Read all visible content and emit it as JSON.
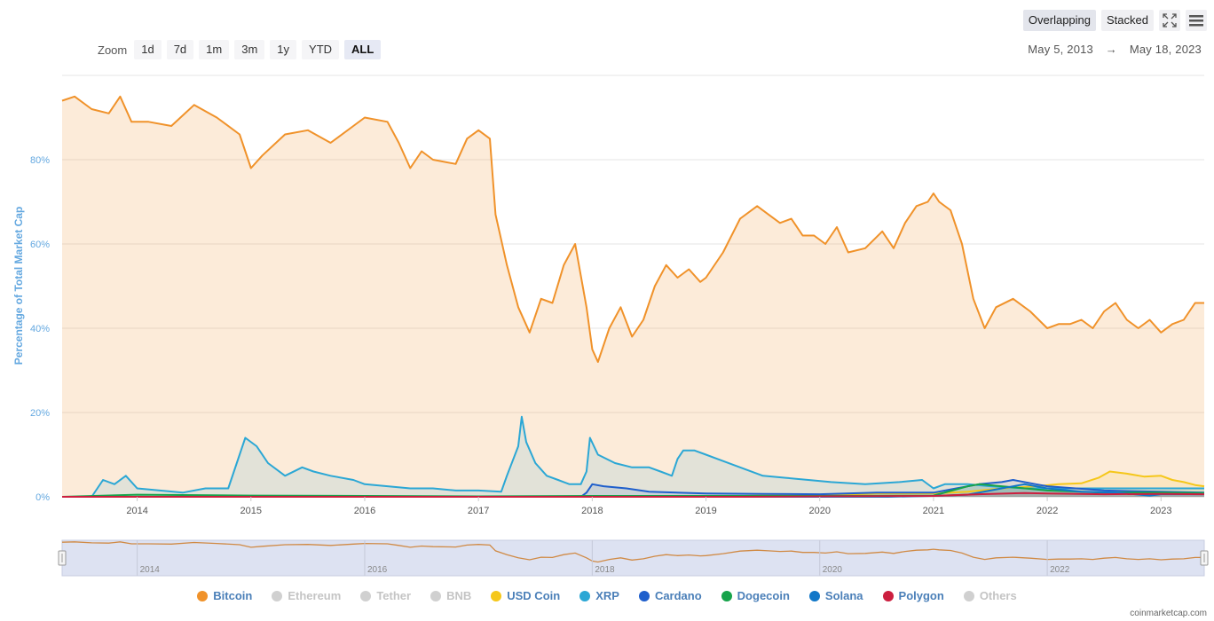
{
  "toolbar": {
    "overlapping_label": "Overlapping",
    "stacked_label": "Stacked",
    "fullscreen_icon": "expand-icon",
    "menu_icon": "hamburger-icon"
  },
  "zoom": {
    "label": "Zoom",
    "options": [
      "1d",
      "7d",
      "1m",
      "3m",
      "1y",
      "YTD",
      "ALL"
    ],
    "active": "ALL"
  },
  "range": {
    "start": "May 5, 2013",
    "arrow": "→",
    "end": "May 18, 2023"
  },
  "credit": "coinmarketcap.com",
  "chart_data": {
    "type": "area",
    "title": "",
    "ylabel": "Percentage of Total Market Cap",
    "xlabel": "",
    "xlim": [
      2013.34,
      2023.38
    ],
    "ylim": [
      0,
      100
    ],
    "yticks": [
      0,
      20,
      40,
      60,
      80
    ],
    "ytick_labels": [
      "0%",
      "20%",
      "40%",
      "60%",
      "80%"
    ],
    "xticks": [
      2014,
      2015,
      2016,
      2017,
      2018,
      2019,
      2020,
      2021,
      2022,
      2023
    ],
    "xtick_labels": [
      "2014",
      "2015",
      "2016",
      "2017",
      "2018",
      "2019",
      "2020",
      "2021",
      "2022",
      "2023"
    ],
    "navigator_ticks": [
      "2014",
      "2016",
      "2018",
      "2020",
      "2022"
    ],
    "series": [
      {
        "name": "Bitcoin",
        "color": "#f0922a",
        "visible": true,
        "x": [
          2013.34,
          2013.45,
          2013.6,
          2013.75,
          2013.85,
          2013.95,
          2014.1,
          2014.3,
          2014.5,
          2014.7,
          2014.9,
          2015.0,
          2015.1,
          2015.3,
          2015.5,
          2015.7,
          2015.9,
          2016.0,
          2016.2,
          2016.3,
          2016.4,
          2016.5,
          2016.6,
          2016.8,
          2016.9,
          2017.0,
          2017.1,
          2017.15,
          2017.25,
          2017.35,
          2017.45,
          2017.55,
          2017.65,
          2017.75,
          2017.85,
          2017.95,
          2018.0,
          2018.05,
          2018.15,
          2018.25,
          2018.35,
          2018.45,
          2018.55,
          2018.65,
          2018.75,
          2018.85,
          2018.95,
          2019.0,
          2019.15,
          2019.3,
          2019.45,
          2019.55,
          2019.65,
          2019.75,
          2019.85,
          2019.95,
          2020.05,
          2020.15,
          2020.25,
          2020.4,
          2020.55,
          2020.65,
          2020.75,
          2020.85,
          2020.95,
          2021.0,
          2021.05,
          2021.15,
          2021.25,
          2021.35,
          2021.45,
          2021.55,
          2021.7,
          2021.85,
          2022.0,
          2022.1,
          2022.2,
          2022.3,
          2022.4,
          2022.5,
          2022.6,
          2022.7,
          2022.8,
          2022.9,
          2023.0,
          2023.1,
          2023.2,
          2023.3,
          2023.38
        ],
        "values": [
          94,
          95,
          92,
          91,
          95,
          89,
          89,
          88,
          93,
          90,
          86,
          78,
          81,
          86,
          87,
          84,
          88,
          90,
          89,
          84,
          78,
          82,
          80,
          79,
          85,
          87,
          85,
          67,
          55,
          45,
          39,
          47,
          46,
          55,
          60,
          45,
          35,
          32,
          40,
          45,
          38,
          42,
          50,
          55,
          52,
          54,
          51,
          52,
          58,
          66,
          69,
          67,
          65,
          66,
          62,
          62,
          60,
          64,
          58,
          59,
          63,
          59,
          65,
          69,
          70,
          72,
          70,
          68,
          60,
          47,
          40,
          45,
          47,
          44,
          40,
          41,
          41,
          42,
          40,
          44,
          46,
          42,
          40,
          42,
          39,
          41,
          42,
          46,
          46
        ]
      },
      {
        "name": "Ethereum",
        "color": "#c9c9c9",
        "visible": false,
        "x": [
          2013.34,
          2013.5,
          2013.7,
          2013.9,
          2014.1,
          2014.3,
          2014.5,
          2014.7,
          2014.9,
          2015.1,
          2015.3,
          2015.5,
          2015.7,
          2015.9,
          2016.1,
          2016.3,
          2016.5,
          2016.7,
          2016.9,
          2017.0,
          2017.1,
          2017.2,
          2017.3,
          2017.4,
          2017.5,
          2017.6,
          2017.7,
          2017.8,
          2017.9,
          2018.0,
          2018.1,
          2018.2,
          2018.3,
          2018.4,
          2018.5,
          2018.6,
          2018.7,
          2018.8,
          2018.9,
          2019.0,
          2019.2,
          2019.4,
          2019.6,
          2019.8,
          2020.0,
          2020.2,
          2020.4,
          2020.6,
          2020.8,
          2021.0,
          2021.1,
          2021.2,
          2021.3,
          2021.4,
          2021.5,
          2021.6,
          2021.7,
          2021.8,
          2021.9,
          2022.0,
          2022.2,
          2022.4,
          2022.6,
          2022.8,
          2023.0,
          2023.2,
          2023.38
        ],
        "values": [
          6,
          4,
          5,
          6,
          9,
          10,
          8,
          7,
          6,
          6,
          7,
          6,
          5,
          5,
          6,
          7,
          8,
          9,
          8,
          7,
          8,
          10,
          15,
          18,
          24,
          28,
          24,
          29,
          26,
          30,
          33,
          34,
          32,
          28,
          33,
          30,
          27,
          25,
          24,
          23,
          22,
          25,
          24,
          20,
          18,
          17,
          19,
          18,
          19,
          14,
          16,
          17,
          19,
          22,
          20,
          19,
          18,
          19,
          20,
          21,
          21,
          20,
          19,
          20,
          18,
          16,
          14
        ]
      },
      {
        "name": "Tether",
        "color": "#c9c9c9",
        "visible": false,
        "x": [
          2013.34,
          2014.5,
          2015.5,
          2016.5,
          2017.5,
          2018.0,
          2018.5,
          2019.0,
          2019.5,
          2020.0,
          2020.5,
          2021.0,
          2021.5,
          2022.0,
          2022.5,
          2023.0,
          2023.38
        ],
        "values": [
          0,
          0,
          0,
          0,
          0.3,
          1.2,
          1.5,
          1.8,
          2.5,
          3.0,
          3.5,
          2.5,
          3.5,
          4.5,
          6.5,
          6.5,
          6.8
        ]
      },
      {
        "name": "BNB",
        "color": "#c9c9c9",
        "visible": false,
        "x": [
          2013.34,
          2017.5,
          2018.0,
          2019.0,
          2020.0,
          2021.0,
          2021.4,
          2022.0,
          2022.5,
          2023.0,
          2023.38
        ],
        "values": [
          0,
          0,
          0.5,
          1.2,
          1.2,
          1.5,
          3.5,
          4.5,
          4.0,
          4.5,
          4.0
        ]
      },
      {
        "name": "USD Coin",
        "color": "#f5c71a",
        "visible": true,
        "x": [
          2013.34,
          2018.9,
          2019.5,
          2020.0,
          2020.5,
          2021.0,
          2021.3,
          2021.6,
          2021.9,
          2022.1,
          2022.3,
          2022.45,
          2022.55,
          2022.7,
          2022.85,
          2023.0,
          2023.1,
          2023.2,
          2023.3,
          2023.38
        ],
        "values": [
          0,
          0,
          0.3,
          0.3,
          0.8,
          0.8,
          1.2,
          2.0,
          2.5,
          3.0,
          3.2,
          4.5,
          6.0,
          5.5,
          4.8,
          5.0,
          4.0,
          3.5,
          2.8,
          2.5
        ]
      },
      {
        "name": "XRP",
        "color": "#2ba7d5",
        "visible": true,
        "x": [
          2013.34,
          2013.6,
          2013.7,
          2013.8,
          2013.9,
          2014.0,
          2014.2,
          2014.4,
          2014.6,
          2014.8,
          2014.9,
          2014.95,
          2015.05,
          2015.15,
          2015.3,
          2015.45,
          2015.55,
          2015.7,
          2015.9,
          2016.0,
          2016.2,
          2016.4,
          2016.6,
          2016.8,
          2017.0,
          2017.2,
          2017.25,
          2017.35,
          2017.38,
          2017.42,
          2017.5,
          2017.6,
          2017.7,
          2017.8,
          2017.9,
          2017.95,
          2017.98,
          2018.05,
          2018.2,
          2018.35,
          2018.5,
          2018.6,
          2018.7,
          2018.75,
          2018.8,
          2018.9,
          2019.0,
          2019.1,
          2019.3,
          2019.5,
          2019.7,
          2019.9,
          2020.1,
          2020.4,
          2020.7,
          2020.9,
          2021.0,
          2021.1,
          2021.3,
          2021.5,
          2021.8,
          2022.0,
          2022.5,
          2023.0,
          2023.38
        ],
        "values": [
          0,
          0,
          4,
          3,
          5,
          2,
          1.5,
          1,
          2,
          2,
          10,
          14,
          12,
          8,
          5,
          7,
          6,
          5,
          4,
          3,
          2.5,
          2,
          2,
          1.5,
          1.5,
          1.2,
          5,
          12,
          19,
          13,
          8,
          5,
          4,
          3,
          3,
          6,
          14,
          10,
          8,
          7,
          7,
          6,
          5,
          9,
          11,
          11,
          10,
          9,
          7,
          5,
          4.5,
          4,
          3.5,
          3,
          3.5,
          4,
          2,
          3,
          3,
          2.5,
          2,
          2,
          2,
          2,
          2
        ]
      },
      {
        "name": "Cardano",
        "color": "#1f5fcc",
        "visible": true,
        "x": [
          2013.34,
          2017.9,
          2017.95,
          2018.0,
          2018.1,
          2018.3,
          2018.5,
          2019.0,
          2019.5,
          2020.0,
          2020.5,
          2021.0,
          2021.2,
          2021.4,
          2021.6,
          2021.7,
          2021.9,
          2022.0,
          2022.5,
          2023.0,
          2023.38
        ],
        "values": [
          0,
          0,
          1,
          3,
          2.5,
          2,
          1.2,
          0.8,
          0.7,
          0.6,
          1,
          1,
          2,
          3,
          3.5,
          4,
          3,
          2.5,
          1.5,
          1.2,
          1
        ]
      },
      {
        "name": "Dogecoin",
        "color": "#16a34a",
        "visible": true,
        "x": [
          2013.34,
          2014.0,
          2015.0,
          2016.0,
          2017.0,
          2018.0,
          2019.0,
          2020.0,
          2021.0,
          2021.3,
          2021.4,
          2021.6,
          2022.0,
          2022.5,
          2023.0,
          2023.38
        ],
        "values": [
          0,
          0.5,
          0.3,
          0.2,
          0.1,
          0.2,
          0.2,
          0.2,
          0.3,
          2.5,
          3,
          2.5,
          1.5,
          1,
          1,
          0.9
        ]
      },
      {
        "name": "Solana",
        "color": "#1177c8",
        "visible": true,
        "x": [
          2013.34,
          2020.6,
          2021.0,
          2021.3,
          2021.6,
          2021.8,
          2021.9,
          2022.0,
          2022.3,
          2022.6,
          2022.9,
          2023.0,
          2023.38
        ],
        "values": [
          0,
          0,
          0.2,
          0.5,
          2,
          3,
          2.5,
          2,
          1.2,
          1,
          0.3,
          0.6,
          0.6
        ]
      },
      {
        "name": "Polygon",
        "color": "#cc1f3f",
        "visible": true,
        "x": [
          2013.34,
          2019.3,
          2020.0,
          2021.0,
          2021.4,
          2021.8,
          2022.0,
          2022.5,
          2023.0,
          2023.38
        ],
        "values": [
          0,
          0,
          0.1,
          0.2,
          0.6,
          0.9,
          0.8,
          0.6,
          0.7,
          0.6
        ]
      },
      {
        "name": "Others",
        "color": "#d4d4d4",
        "visible": false,
        "x": [
          2013.34,
          2016.0,
          2017.0,
          2018.0,
          2019.0,
          2020.0,
          2021.0,
          2022.0,
          2023.0,
          2023.38
        ],
        "values": [
          4,
          3,
          5,
          10,
          8,
          7,
          10,
          13,
          14,
          14
        ]
      }
    ]
  }
}
